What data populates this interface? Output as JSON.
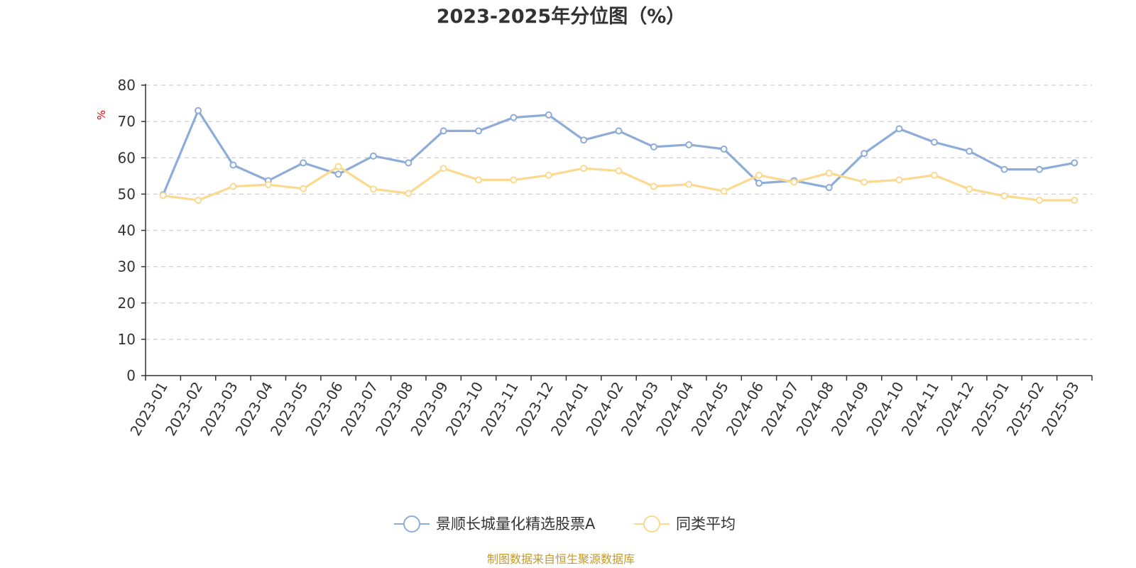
{
  "chart_data": {
    "type": "line",
    "title": "2023-2025年分位图（%）",
    "ylabel": "%",
    "xlabel": "",
    "ylim": [
      0,
      80
    ],
    "yticks": [
      0,
      10,
      20,
      30,
      40,
      50,
      60,
      70,
      80
    ],
    "grid": true,
    "legend_position": "bottom-center",
    "categories": [
      "2023-01",
      "2023-02",
      "2023-03",
      "2023-04",
      "2023-05",
      "2023-06",
      "2023-07",
      "2023-08",
      "2023-09",
      "2023-10",
      "2023-11",
      "2023-12",
      "2024-01",
      "2024-02",
      "2024-03",
      "2024-04",
      "2024-05",
      "2024-06",
      "2024-07",
      "2024-08",
      "2024-09",
      "2024-10",
      "2024-11",
      "2024-12",
      "2025-01",
      "2025-02",
      "2025-03"
    ],
    "series": [
      {
        "name": "景顺长城量化精选股票A",
        "color": "#8eacd8",
        "values": [
          49.8,
          73.0,
          58.0,
          53.7,
          58.6,
          55.5,
          60.5,
          58.6,
          67.4,
          67.4,
          71.1,
          71.8,
          64.9,
          67.4,
          63.0,
          63.6,
          62.4,
          53.0,
          53.7,
          51.8,
          61.2,
          68.0,
          64.3,
          61.8,
          56.8,
          56.8,
          58.6
        ]
      },
      {
        "name": "同类平均",
        "color": "#fbd98f",
        "values": [
          49.6,
          48.3,
          52.1,
          52.6,
          51.5,
          57.6,
          51.4,
          50.2,
          57.1,
          53.9,
          53.9,
          55.2,
          57.1,
          56.4,
          52.1,
          52.7,
          50.8,
          55.2,
          53.3,
          55.8,
          53.3,
          53.9,
          55.2,
          51.4,
          49.5,
          48.3,
          48.3
        ]
      }
    ]
  },
  "footer": {
    "source": "制图数据来自恒生聚源数据库"
  }
}
